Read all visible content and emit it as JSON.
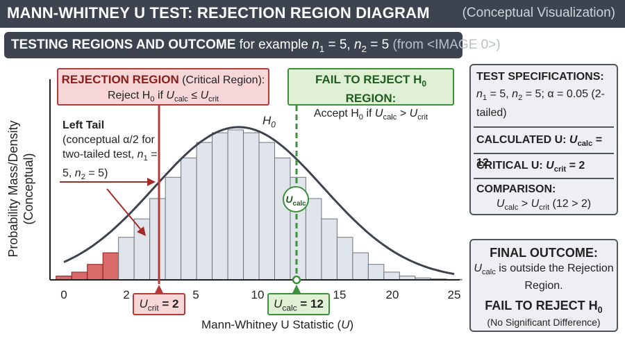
{
  "header": {
    "title": "MANN-WHITNEY U TEST: REJECTION REGION DIAGRAM",
    "subtitle": "(Conceptual Visualization)"
  },
  "subheader": {
    "bold": "TESTING REGIONS AND OUTCOME",
    "text": "for example n1 = 5, n2 = 5",
    "muted": "(from <IMAGE 0>)"
  },
  "chart_data": {
    "type": "bar",
    "xlabel": "Mann-Whitney U Statistic (U)",
    "ylabel": "Probability Mass/Density (Conceptual)",
    "xlim": [
      0,
      25
    ],
    "x_ticks": [
      0,
      5,
      10,
      15,
      20,
      25
    ],
    "categories": [
      0,
      1,
      2,
      3,
      4,
      5,
      6,
      7,
      8,
      9,
      10,
      11,
      12,
      13,
      14,
      15,
      16,
      17,
      18,
      19,
      20,
      21,
      22,
      23,
      24,
      25
    ],
    "values": [
      0.004,
      0.008,
      0.016,
      0.028,
      0.044,
      0.063,
      0.084,
      0.106,
      0.126,
      0.142,
      0.152,
      0.155,
      0.152,
      0.142,
      0.126,
      0.106,
      0.084,
      0.063,
      0.044,
      0.028,
      0.016,
      0.008,
      0.004,
      0.002,
      0.001,
      0.0005
    ],
    "curve_label": "H0",
    "rejection_region_max_u": 2,
    "u_crit": 2,
    "u_calc": 12,
    "colors": {
      "rejection": "#d96a6a",
      "acceptance": "#dfe5ea",
      "curve": "#3d4450",
      "crit": "#b53a3a",
      "calc": "#3c8f3c"
    }
  },
  "rejection_box": {
    "title": "REJECTION REGION",
    "title_suffix": "(Critical Region):",
    "rule": "Reject H0 if Ucalc ≤ Ucrit"
  },
  "fail_box": {
    "title": "FAIL TO REJECT H0 REGION:",
    "rule": "Accept H0 if Ucalc > Ucrit"
  },
  "left_tail": {
    "title": "Left Tail",
    "text": "(conceptual α/2 for two-tailed test, n1 = 5, n2 = 5)"
  },
  "markers": {
    "u_crit_label": "Ucrit = 2",
    "u_calc_label": "Ucalc = 12",
    "u_calc_circle": "Ucalc"
  },
  "specs": {
    "title": "TEST SPECIFICATIONS:",
    "params": "n1 = 5, n2 = 5; α = 0.05 (2-tailed)",
    "calc_title": "CALCULATED U:",
    "calc_value": "Ucalc = 12",
    "crit_title": "CRITICAL U:",
    "crit_value": "Ucrit = 2",
    "comp_title": "COMPARISON:",
    "comp_value": "Ucalc > Ucrit (12 > 2)"
  },
  "outcome": {
    "title": "FINAL OUTCOME:",
    "text": "Ucalc is outside the Rejection Region.",
    "decision": "FAIL TO REJECT H0",
    "note": "(No Significant Difference)"
  }
}
